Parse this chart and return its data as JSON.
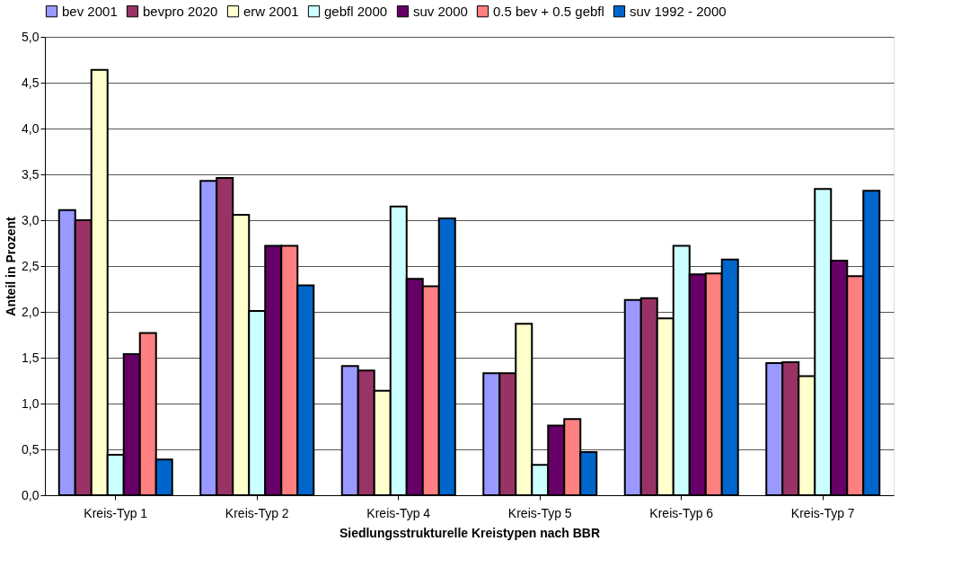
{
  "chart_data": {
    "type": "bar",
    "xlabel": "Siedlungsstrukturelle Kreistypen nach BBR",
    "ylabel": "Anteil in Prozent",
    "categories": [
      "Kreis-Typ 1",
      "Kreis-Typ 2",
      "Kreis-Typ 4",
      "Kreis-Typ 5",
      "Kreis-Typ 6",
      "Kreis-Typ 7"
    ],
    "series": [
      {
        "name": "bev 2001",
        "color": "#9999ff",
        "values": [
          3.11,
          3.43,
          1.41,
          1.33,
          2.13,
          1.44
        ]
      },
      {
        "name": "bevpro 2020",
        "color": "#993366",
        "values": [
          3.0,
          3.46,
          1.36,
          1.33,
          2.15,
          1.45
        ]
      },
      {
        "name": "erw 2001",
        "color": "#ffffcc",
        "values": [
          4.64,
          3.06,
          1.14,
          1.87,
          1.93,
          1.3
        ]
      },
      {
        "name": "gebfl 2000",
        "color": "#ccffff",
        "values": [
          0.44,
          2.01,
          3.15,
          0.33,
          2.72,
          3.34
        ]
      },
      {
        "name": "suv 2000",
        "color": "#660066",
        "values": [
          1.54,
          2.72,
          2.36,
          0.76,
          2.41,
          2.56
        ]
      },
      {
        "name": "0.5 bev + 0.5 gebfl",
        "color": "#ff8080",
        "values": [
          1.77,
          2.72,
          2.28,
          0.83,
          2.42,
          2.39
        ]
      },
      {
        "name": "suv 1992 - 2000",
        "color": "#0066cc",
        "values": [
          0.39,
          2.29,
          3.02,
          0.47,
          2.57,
          3.32
        ]
      }
    ],
    "ylim": [
      0,
      5
    ],
    "yticks": [
      {
        "value": 0,
        "label": "0,0"
      },
      {
        "value": 0.5,
        "label": "0,5"
      },
      {
        "value": 1,
        "label": "1,0"
      },
      {
        "value": 1.5,
        "label": "1,5"
      },
      {
        "value": 2,
        "label": "2,0"
      },
      {
        "value": 2.5,
        "label": "2,5"
      },
      {
        "value": 3,
        "label": "3,0"
      },
      {
        "value": 3.5,
        "label": "3,5"
      },
      {
        "value": 4,
        "label": "4,0"
      },
      {
        "value": 4.5,
        "label": "4,5"
      },
      {
        "value": 5,
        "label": "5,0"
      }
    ],
    "grid": "y",
    "legend": "top"
  }
}
